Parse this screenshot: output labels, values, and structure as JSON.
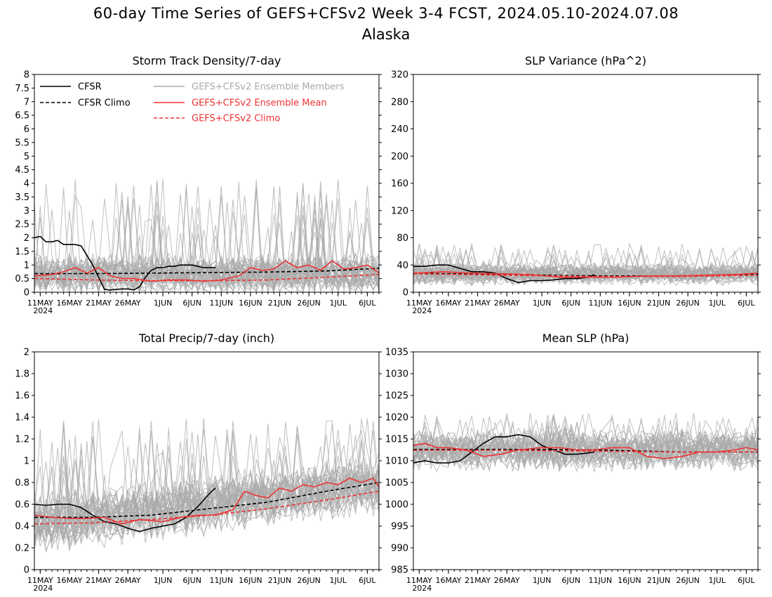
{
  "figure": {
    "title": "60-day Time Series of GEFS+CFSv2 Week 3-4 FCST, 2024.05.10-2024.07.08",
    "subtitle": "Alaska"
  },
  "legend": {
    "items": [
      {
        "label": "CFSR",
        "color": "#000000",
        "dash": false
      },
      {
        "label": "CFSR Climo",
        "color": "#000000",
        "dash": true
      },
      {
        "label": "GEFS+CFSv2 Ensemble Members",
        "color": "#aaaaaa",
        "dash": false
      },
      {
        "label": "GEFS+CFSv2 Ensemble Mean",
        "color": "#ee3333",
        "dash": false
      },
      {
        "label": "GEFS+CFSv2 Climo",
        "color": "#ee3333",
        "dash": true
      }
    ]
  },
  "colors": {
    "cfsr": "#000000",
    "members": "#aaaaaa",
    "mean": "#ee3333",
    "climo_model": "#ee3333"
  },
  "chart_data": [
    {
      "type": "line",
      "title": "Storm Track Density/7-day",
      "ylim": [
        0,
        8
      ],
      "yticks": [
        "0",
        "0.5",
        "1",
        "1.5",
        "2",
        "2.5",
        "3",
        "3.5",
        "4",
        "4.5",
        "5",
        "5.5",
        "6",
        "6.5",
        "7",
        "7.5",
        "8"
      ],
      "x_start": "2024-05-10",
      "x_end": "2024-07-08",
      "xtick_dates": [
        "2024-05-11",
        "2024-05-16",
        "2024-05-21",
        "2024-05-26",
        "2024-06-01",
        "2024-06-06",
        "2024-06-11",
        "2024-06-16",
        "2024-06-21",
        "2024-06-26",
        "2024-07-01",
        "2024-07-06"
      ],
      "xticks": [
        "11MAY",
        "16MAY",
        "21MAY",
        "26MAY",
        "1JUN",
        "6JUN",
        "11JUN",
        "16JUN",
        "21JUN",
        "26JUN",
        "1JUL",
        "6JUL"
      ],
      "xyear": "2024",
      "members_band": {
        "center": 0.65,
        "spread": 0.55,
        "max": 4.2
      },
      "series": [
        {
          "name": "CFSR",
          "x": [
            "2024-05-10",
            "2024-05-11",
            "2024-05-12",
            "2024-05-13",
            "2024-05-14",
            "2024-05-15",
            "2024-05-16",
            "2024-05-17",
            "2024-05-18",
            "2024-05-19",
            "2024-05-20",
            "2024-05-21",
            "2024-05-22",
            "2024-05-23",
            "2024-05-24",
            "2024-05-25",
            "2024-05-26",
            "2024-05-27",
            "2024-05-28",
            "2024-05-29",
            "2024-05-30",
            "2024-05-31",
            "2024-06-01",
            "2024-06-02",
            "2024-06-03",
            "2024-06-04",
            "2024-06-05",
            "2024-06-06",
            "2024-06-07",
            "2024-06-08",
            "2024-06-09",
            "2024-06-10"
          ],
          "y": [
            2.0,
            2.05,
            1.85,
            1.85,
            1.9,
            1.75,
            1.75,
            1.75,
            1.7,
            1.35,
            1.0,
            0.55,
            0.1,
            0.08,
            0.1,
            0.12,
            0.12,
            0.08,
            0.2,
            0.55,
            0.8,
            0.9,
            0.9,
            0.95,
            0.95,
            1.0,
            1.0,
            1.0,
            0.95,
            0.9,
            0.9,
            0.9
          ]
        },
        {
          "name": "CFSR Climo",
          "x": [
            "2024-05-10",
            "2024-05-20",
            "2024-05-30",
            "2024-06-09",
            "2024-06-19",
            "2024-06-29",
            "2024-07-08"
          ],
          "y": [
            0.68,
            0.68,
            0.7,
            0.72,
            0.74,
            0.78,
            0.88
          ]
        },
        {
          "name": "GEFS+CFSv2 Ensemble Mean",
          "x": [
            "2024-05-10",
            "2024-05-13",
            "2024-05-15",
            "2024-05-17",
            "2024-05-19",
            "2024-05-21",
            "2024-05-23",
            "2024-05-25",
            "2024-05-27",
            "2024-05-30",
            "2024-06-02",
            "2024-06-05",
            "2024-06-08",
            "2024-06-11",
            "2024-06-14",
            "2024-06-16",
            "2024-06-18",
            "2024-06-20",
            "2024-06-22",
            "2024-06-24",
            "2024-06-26",
            "2024-06-28",
            "2024-06-30",
            "2024-07-02",
            "2024-07-04",
            "2024-07-06",
            "2024-07-08"
          ],
          "y": [
            0.6,
            0.65,
            0.75,
            0.9,
            0.7,
            0.9,
            0.6,
            0.5,
            0.5,
            0.4,
            0.45,
            0.45,
            0.4,
            0.45,
            0.6,
            0.9,
            0.8,
            0.85,
            1.15,
            0.9,
            1.0,
            0.8,
            1.15,
            0.85,
            0.9,
            1.0,
            0.7
          ]
        },
        {
          "name": "GEFS+CFSv2 Climo",
          "x": [
            "2024-05-10",
            "2024-05-20",
            "2024-05-30",
            "2024-06-09",
            "2024-06-19",
            "2024-06-29",
            "2024-07-08"
          ],
          "y": [
            0.5,
            0.45,
            0.42,
            0.42,
            0.45,
            0.55,
            0.65
          ]
        }
      ]
    },
    {
      "type": "line",
      "title": "SLP Variance (hPa^2)",
      "ylim": [
        0,
        320
      ],
      "yticks": [
        "0",
        "40",
        "80",
        "120",
        "160",
        "200",
        "240",
        "280",
        "320"
      ],
      "x_start": "2024-05-10",
      "x_end": "2024-07-08",
      "xtick_dates": [
        "2024-05-11",
        "2024-05-16",
        "2024-05-21",
        "2024-05-26",
        "2024-06-01",
        "2024-06-06",
        "2024-06-11",
        "2024-06-16",
        "2024-06-21",
        "2024-06-26",
        "2024-07-01",
        "2024-07-06"
      ],
      "xticks": [
        "11MAY",
        "16MAY",
        "21MAY",
        "26MAY",
        "1JUN",
        "6JUN",
        "11JUN",
        "16JUN",
        "21JUN",
        "26JUN",
        "1JUL",
        "6JUL"
      ],
      "xyear": "2024",
      "members_band": {
        "center": 27,
        "spread": 12,
        "max": 72
      },
      "series": [
        {
          "name": "CFSR",
          "x": [
            "2024-05-10",
            "2024-05-12",
            "2024-05-14",
            "2024-05-16",
            "2024-05-18",
            "2024-05-20",
            "2024-05-22",
            "2024-05-24",
            "2024-05-26",
            "2024-05-28",
            "2024-05-30",
            "2024-06-01",
            "2024-06-03",
            "2024-06-05",
            "2024-06-07",
            "2024-06-09",
            "2024-06-10"
          ],
          "y": [
            38,
            38,
            40,
            40,
            35,
            30,
            30,
            28,
            20,
            14,
            17,
            17,
            18,
            20,
            20,
            22,
            26
          ]
        },
        {
          "name": "CFSR Climo",
          "x": [
            "2024-05-10",
            "2024-05-25",
            "2024-06-10",
            "2024-06-25",
            "2024-07-08"
          ],
          "y": [
            28,
            26,
            24,
            24,
            26
          ]
        },
        {
          "name": "GEFS+CFSv2 Ensemble Mean",
          "x": [
            "2024-05-10",
            "2024-05-15",
            "2024-05-20",
            "2024-05-25",
            "2024-05-30",
            "2024-06-04",
            "2024-06-09",
            "2024-06-14",
            "2024-06-19",
            "2024-06-24",
            "2024-06-29",
            "2024-07-04",
            "2024-07-08"
          ],
          "y": [
            28,
            30,
            28,
            27,
            26,
            22,
            22,
            22,
            24,
            24,
            25,
            26,
            28
          ]
        },
        {
          "name": "GEFS+CFSv2 Climo",
          "x": [
            "2024-05-10",
            "2024-05-25",
            "2024-06-10",
            "2024-06-25",
            "2024-07-08"
          ],
          "y": [
            27,
            25,
            23,
            23,
            25
          ]
        }
      ]
    },
    {
      "type": "line",
      "title": "Total Precip/7-day (inch)",
      "ylim": [
        0,
        2
      ],
      "yticks": [
        "0",
        "0.2",
        "0.4",
        "0.6",
        "0.8",
        "1",
        "1.2",
        "1.4",
        "1.6",
        "1.8",
        "2"
      ],
      "x_start": "2024-05-10",
      "x_end": "2024-07-08",
      "xtick_dates": [
        "2024-05-11",
        "2024-05-16",
        "2024-05-21",
        "2024-05-26",
        "2024-06-01",
        "2024-06-06",
        "2024-06-11",
        "2024-06-16",
        "2024-06-21",
        "2024-06-26",
        "2024-07-01",
        "2024-07-06"
      ],
      "xticks": [
        "11MAY",
        "16MAY",
        "21MAY",
        "26MAY",
        "1JUN",
        "6JUN",
        "11JUN",
        "16JUN",
        "21JUN",
        "26JUN",
        "1JUL",
        "6JUL"
      ],
      "xyear": "2024",
      "members_band": {
        "center_start": 0.42,
        "center_end": 0.78,
        "spread": 0.2,
        "max": 1.4
      },
      "series": [
        {
          "name": "CFSR",
          "x": [
            "2024-05-10",
            "2024-05-12",
            "2024-05-14",
            "2024-05-16",
            "2024-05-18",
            "2024-05-20",
            "2024-05-22",
            "2024-05-24",
            "2024-05-26",
            "2024-05-28",
            "2024-05-30",
            "2024-06-01",
            "2024-06-03",
            "2024-06-05",
            "2024-06-07",
            "2024-06-09",
            "2024-06-10"
          ],
          "y": [
            0.6,
            0.59,
            0.6,
            0.6,
            0.57,
            0.5,
            0.44,
            0.42,
            0.38,
            0.35,
            0.38,
            0.4,
            0.42,
            0.48,
            0.58,
            0.7,
            0.75
          ]
        },
        {
          "name": "CFSR Climo",
          "x": [
            "2024-05-10",
            "2024-05-20",
            "2024-05-30",
            "2024-06-09",
            "2024-06-19",
            "2024-06-29",
            "2024-07-08"
          ],
          "y": [
            0.48,
            0.48,
            0.5,
            0.56,
            0.62,
            0.72,
            0.8
          ]
        },
        {
          "name": "GEFS+CFSv2 Ensemble Mean",
          "x": [
            "2024-05-10",
            "2024-05-13",
            "2024-05-16",
            "2024-05-19",
            "2024-05-22",
            "2024-05-25",
            "2024-05-28",
            "2024-06-01",
            "2024-06-04",
            "2024-06-07",
            "2024-06-10",
            "2024-06-13",
            "2024-06-15",
            "2024-06-17",
            "2024-06-19",
            "2024-06-21",
            "2024-06-23",
            "2024-06-25",
            "2024-06-27",
            "2024-06-29",
            "2024-07-01",
            "2024-07-03",
            "2024-07-05",
            "2024-07-07",
            "2024-07-08"
          ],
          "y": [
            0.5,
            0.48,
            0.47,
            0.47,
            0.48,
            0.42,
            0.46,
            0.44,
            0.48,
            0.5,
            0.5,
            0.55,
            0.72,
            0.68,
            0.66,
            0.75,
            0.72,
            0.78,
            0.76,
            0.8,
            0.78,
            0.84,
            0.8,
            0.84,
            0.76
          ]
        },
        {
          "name": "GEFS+CFSv2 Climo",
          "x": [
            "2024-05-10",
            "2024-05-20",
            "2024-05-30",
            "2024-06-09",
            "2024-06-19",
            "2024-06-29",
            "2024-07-08"
          ],
          "y": [
            0.42,
            0.43,
            0.46,
            0.5,
            0.56,
            0.64,
            0.72
          ]
        }
      ]
    },
    {
      "type": "line",
      "title": "Mean SLP (hPa)",
      "ylim": [
        985,
        1035
      ],
      "yticks": [
        "985",
        "990",
        "995",
        "1000",
        "1005",
        "1010",
        "1015",
        "1020",
        "1025",
        "1030",
        "1035"
      ],
      "x_start": "2024-05-10",
      "x_end": "2024-07-08",
      "xtick_dates": [
        "2024-05-11",
        "2024-05-16",
        "2024-05-21",
        "2024-05-26",
        "2024-06-01",
        "2024-06-06",
        "2024-06-11",
        "2024-06-16",
        "2024-06-21",
        "2024-06-26",
        "2024-07-01",
        "2024-07-06"
      ],
      "xticks": [
        "11MAY",
        "16MAY",
        "21MAY",
        "26MAY",
        "1JUN",
        "6JUN",
        "11JUN",
        "16JUN",
        "21JUN",
        "26JUN",
        "1JUL",
        "6JUL"
      ],
      "xyear": "2024",
      "members_band": {
        "center": 1012.5,
        "spread": 3.5,
        "max": 1021
      },
      "series": [
        {
          "name": "CFSR",
          "x": [
            "2024-05-10",
            "2024-05-12",
            "2024-05-14",
            "2024-05-16",
            "2024-05-18",
            "2024-05-20",
            "2024-05-22",
            "2024-05-24",
            "2024-05-26",
            "2024-05-28",
            "2024-05-30",
            "2024-06-01",
            "2024-06-03",
            "2024-06-05",
            "2024-06-07",
            "2024-06-09",
            "2024-06-10"
          ],
          "y": [
            1009.5,
            1010,
            1009.5,
            1009.5,
            1010,
            1012,
            1014,
            1015.5,
            1015.5,
            1016,
            1015.5,
            1013.5,
            1012.5,
            1011.5,
            1011.5,
            1011.8,
            1012
          ]
        },
        {
          "name": "CFSR Climo",
          "x": [
            "2024-05-10",
            "2024-05-25",
            "2024-06-10",
            "2024-06-25",
            "2024-07-08"
          ],
          "y": [
            1012.6,
            1012.6,
            1012.5,
            1012,
            1012
          ]
        },
        {
          "name": "GEFS+CFSv2 Ensemble Mean",
          "x": [
            "2024-05-10",
            "2024-05-12",
            "2024-05-14",
            "2024-05-16",
            "2024-05-19",
            "2024-05-22",
            "2024-05-25",
            "2024-05-28",
            "2024-06-01",
            "2024-06-04",
            "2024-06-07",
            "2024-06-10",
            "2024-06-13",
            "2024-06-16",
            "2024-06-19",
            "2024-06-22",
            "2024-06-25",
            "2024-06-28",
            "2024-07-01",
            "2024-07-04",
            "2024-07-06",
            "2024-07-08"
          ],
          "y": [
            1013.5,
            1014,
            1013,
            1013,
            1012.5,
            1011,
            1011.5,
            1012.5,
            1013,
            1013,
            1012.5,
            1012.5,
            1013,
            1013,
            1011,
            1010.5,
            1011,
            1012,
            1012,
            1012.5,
            1013,
            1012.5
          ]
        },
        {
          "name": "GEFS+CFSv2 Climo",
          "x": [
            "2024-05-10",
            "2024-05-25",
            "2024-06-10",
            "2024-06-25",
            "2024-07-08"
          ],
          "y": [
            1012.4,
            1012.4,
            1012.2,
            1012,
            1012
          ]
        }
      ]
    }
  ]
}
